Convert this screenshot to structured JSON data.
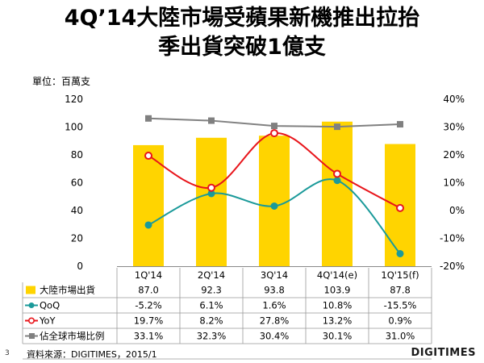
{
  "page": {
    "title_line1": "4Q’14大陸市場受蘋果新機推出拉抬",
    "title_line2": "季出貨突破1億支",
    "unit": "單位：百萬支",
    "page_number": "3",
    "source": "資料來源：DIGITIMES，2015/1",
    "logo": "DIGITIMES"
  },
  "colors": {
    "bar": "#FFD400",
    "qoq": "#1B9A9A",
    "yoy": "#E8151B",
    "share": "#808080"
  },
  "chart_data": {
    "type": "bar",
    "categories": [
      "1Q'14",
      "2Q'14",
      "3Q'14",
      "4Q'14(e)",
      "1Q'15(f)"
    ],
    "left_axis": {
      "min": 0,
      "max": 120,
      "ticks": [
        0,
        20,
        40,
        60,
        80,
        100,
        120
      ]
    },
    "right_axis": {
      "min": -20,
      "max": 40,
      "ticks": [
        "-20%",
        "-10%",
        "0%",
        "10%",
        "20%",
        "30%",
        "40%"
      ]
    },
    "series": [
      {
        "name": "大陸市場出貨",
        "kind": "bar",
        "axis": "left",
        "values": [
          87.0,
          92.3,
          93.8,
          103.9,
          87.8
        ],
        "labels": [
          "87.0",
          "92.3",
          "93.8",
          "103.9",
          "87.8"
        ]
      },
      {
        "name": "QoQ",
        "kind": "line",
        "axis": "right",
        "values": [
          -5.2,
          6.1,
          1.6,
          10.8,
          -15.5
        ],
        "labels": [
          "-5.2%",
          "6.1%",
          "1.6%",
          "10.8%",
          "-15.5%"
        ]
      },
      {
        "name": "YoY",
        "kind": "line",
        "axis": "right",
        "values": [
          19.7,
          8.2,
          27.8,
          13.2,
          0.9
        ],
        "labels": [
          "19.7%",
          "8.2%",
          "27.8%",
          "13.2%",
          "0.9%"
        ]
      },
      {
        "name": "佔全球市場比例",
        "kind": "line",
        "axis": "right",
        "values": [
          33.1,
          32.3,
          30.4,
          30.1,
          31.0
        ],
        "labels": [
          "33.1%",
          "32.3%",
          "30.4%",
          "30.1%",
          "31.0%"
        ]
      }
    ]
  }
}
